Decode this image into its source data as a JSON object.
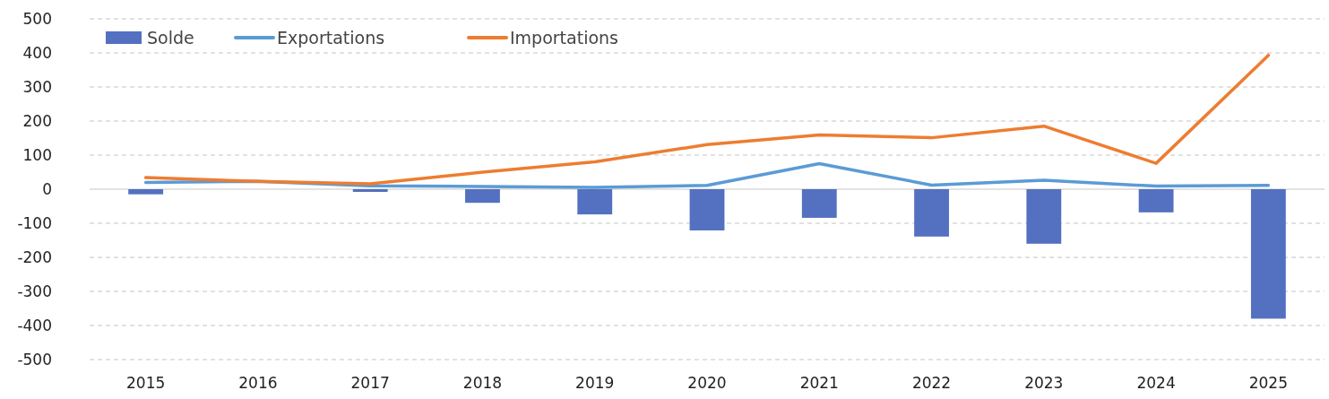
{
  "chart_data": {
    "type": "bar",
    "categories": [
      "2015",
      "2016",
      "2017",
      "2018",
      "2019",
      "2020",
      "2021",
      "2022",
      "2023",
      "2024",
      "2025"
    ],
    "series": [
      {
        "name": "Solde",
        "color": "#5470c0",
        "values": [
          -15,
          0,
          -8,
          -40,
          -74,
          -121,
          -84,
          -139,
          -160,
          -68,
          -380
        ]
      },
      {
        "name": "Exportations",
        "type": "line",
        "color": "#5b9bd5",
        "values": [
          20,
          23,
          10,
          8,
          5,
          11,
          75,
          12,
          26,
          9,
          11
        ]
      },
      {
        "name": "Importations",
        "type": "line",
        "color": "#ed7d31",
        "values": [
          34,
          23,
          16,
          50,
          80,
          131,
          159,
          151,
          185,
          76,
          393
        ]
      }
    ],
    "ylim": [
      -500,
      500
    ],
    "yticks": [
      -500,
      -400,
      -300,
      -200,
      -100,
      0,
      100,
      200,
      300,
      400,
      500
    ],
    "grid": "y",
    "legend": "top left"
  }
}
